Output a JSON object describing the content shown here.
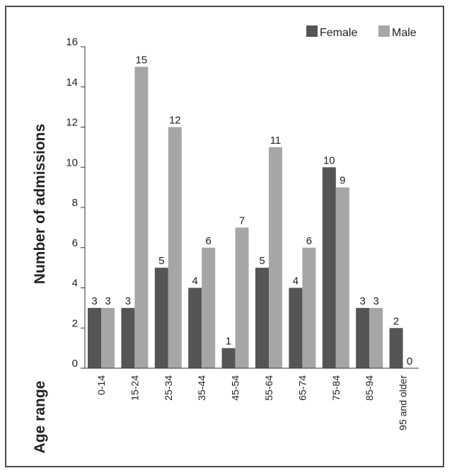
{
  "chart_data": {
    "type": "bar",
    "title": "",
    "xlabel": "Age range",
    "ylabel": "Number of admissions",
    "ylim": [
      0,
      16
    ],
    "yticks": [
      0,
      2,
      4,
      6,
      8,
      10,
      12,
      14,
      16
    ],
    "categories": [
      "0-14",
      "15-24",
      "25-34",
      "35-44",
      "45-54",
      "55-64",
      "65-74",
      "75-84",
      "85-94",
      "95 and older"
    ],
    "series": [
      {
        "name": "Female",
        "values": [
          3,
          3,
          5,
          4,
          1,
          5,
          4,
          10,
          3,
          2
        ],
        "color": "#555555"
      },
      {
        "name": "Male",
        "values": [
          3,
          15,
          12,
          6,
          7,
          11,
          6,
          9,
          3,
          0
        ],
        "color": "#a6a6a6"
      }
    ],
    "legend_position": "top-right",
    "grid": false
  }
}
